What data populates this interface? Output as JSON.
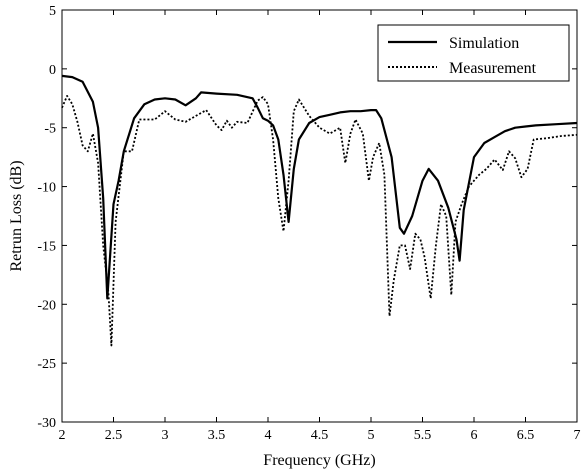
{
  "chart_data": {
    "type": "line",
    "title": "",
    "xlabel": "Frequency (GHz)",
    "ylabel": "Retrun Loss (dB)",
    "xlim": [
      2,
      7
    ],
    "ylim": [
      -30,
      5
    ],
    "xticks": [
      "2",
      "2.5",
      "3",
      "3.5",
      "4",
      "4.5",
      "5",
      "5.5",
      "6",
      "6.5",
      "7"
    ],
    "yticks": [
      "5",
      "0",
      "-5",
      "-10",
      "-15",
      "-20",
      "-25",
      "-30"
    ],
    "grid": false,
    "legend_position": "top-right",
    "series": [
      {
        "name": "Simulation",
        "style": "solid",
        "color": "#000000",
        "points": [
          [
            2.0,
            -0.6
          ],
          [
            2.1,
            -0.7
          ],
          [
            2.2,
            -1.1
          ],
          [
            2.3,
            -2.8
          ],
          [
            2.35,
            -5.0
          ],
          [
            2.4,
            -11.0
          ],
          [
            2.44,
            -19.5
          ],
          [
            2.5,
            -11.5
          ],
          [
            2.55,
            -9.5
          ],
          [
            2.6,
            -7.0
          ],
          [
            2.7,
            -4.2
          ],
          [
            2.8,
            -3.0
          ],
          [
            2.9,
            -2.6
          ],
          [
            3.0,
            -2.5
          ],
          [
            3.1,
            -2.6
          ],
          [
            3.2,
            -3.1
          ],
          [
            3.3,
            -2.5
          ],
          [
            3.35,
            -2.0
          ],
          [
            3.5,
            -2.1
          ],
          [
            3.7,
            -2.2
          ],
          [
            3.85,
            -2.5
          ],
          [
            3.9,
            -3.3
          ],
          [
            3.95,
            -4.2
          ],
          [
            4.0,
            -4.4
          ],
          [
            4.05,
            -4.8
          ],
          [
            4.1,
            -6.0
          ],
          [
            4.15,
            -9.0
          ],
          [
            4.2,
            -13.0
          ],
          [
            4.25,
            -8.5
          ],
          [
            4.3,
            -6.0
          ],
          [
            4.4,
            -4.6
          ],
          [
            4.5,
            -4.1
          ],
          [
            4.6,
            -3.9
          ],
          [
            4.7,
            -3.7
          ],
          [
            4.8,
            -3.6
          ],
          [
            4.9,
            -3.6
          ],
          [
            5.0,
            -3.5
          ],
          [
            5.05,
            -3.5
          ],
          [
            5.1,
            -4.2
          ],
          [
            5.2,
            -7.5
          ],
          [
            5.28,
            -13.5
          ],
          [
            5.32,
            -14.0
          ],
          [
            5.4,
            -12.5
          ],
          [
            5.5,
            -9.5
          ],
          [
            5.56,
            -8.5
          ],
          [
            5.65,
            -9.5
          ],
          [
            5.75,
            -11.8
          ],
          [
            5.83,
            -14.5
          ],
          [
            5.86,
            -16.3
          ],
          [
            5.9,
            -12.0
          ],
          [
            6.0,
            -7.5
          ],
          [
            6.1,
            -6.3
          ],
          [
            6.2,
            -5.8
          ],
          [
            6.3,
            -5.3
          ],
          [
            6.4,
            -5.0
          ],
          [
            6.5,
            -4.9
          ],
          [
            6.6,
            -4.8
          ],
          [
            6.8,
            -4.7
          ],
          [
            7.0,
            -4.6
          ]
        ]
      },
      {
        "name": "Measurement",
        "style": "dotted",
        "color": "#000000",
        "points": [
          [
            2.0,
            -3.3
          ],
          [
            2.05,
            -2.3
          ],
          [
            2.1,
            -3.0
          ],
          [
            2.15,
            -4.5
          ],
          [
            2.2,
            -6.5
          ],
          [
            2.25,
            -7.0
          ],
          [
            2.3,
            -5.5
          ],
          [
            2.35,
            -8.0
          ],
          [
            2.4,
            -15.0
          ],
          [
            2.45,
            -19.0
          ],
          [
            2.48,
            -23.5
          ],
          [
            2.52,
            -13.0
          ],
          [
            2.56,
            -10.0
          ],
          [
            2.6,
            -7.0
          ],
          [
            2.68,
            -7.0
          ],
          [
            2.75,
            -4.3
          ],
          [
            2.9,
            -4.3
          ],
          [
            3.0,
            -3.6
          ],
          [
            3.1,
            -4.3
          ],
          [
            3.2,
            -4.5
          ],
          [
            3.3,
            -4.0
          ],
          [
            3.4,
            -3.5
          ],
          [
            3.5,
            -4.8
          ],
          [
            3.55,
            -5.2
          ],
          [
            3.6,
            -4.4
          ],
          [
            3.65,
            -5.0
          ],
          [
            3.7,
            -4.5
          ],
          [
            3.8,
            -4.6
          ],
          [
            3.9,
            -2.7
          ],
          [
            3.95,
            -2.4
          ],
          [
            4.0,
            -3.0
          ],
          [
            4.05,
            -6.0
          ],
          [
            4.1,
            -11.0
          ],
          [
            4.15,
            -13.8
          ],
          [
            4.2,
            -9.5
          ],
          [
            4.25,
            -3.6
          ],
          [
            4.3,
            -2.6
          ],
          [
            4.4,
            -4.0
          ],
          [
            4.5,
            -5.0
          ],
          [
            4.6,
            -5.5
          ],
          [
            4.7,
            -5.0
          ],
          [
            4.75,
            -8.0
          ],
          [
            4.8,
            -5.5
          ],
          [
            4.85,
            -4.3
          ],
          [
            4.92,
            -5.5
          ],
          [
            4.98,
            -9.5
          ],
          [
            5.02,
            -7.5
          ],
          [
            5.08,
            -6.3
          ],
          [
            5.13,
            -9.0
          ],
          [
            5.18,
            -21.0
          ],
          [
            5.22,
            -18.0
          ],
          [
            5.28,
            -15.0
          ],
          [
            5.33,
            -15.0
          ],
          [
            5.38,
            -17.0
          ],
          [
            5.43,
            -14.0
          ],
          [
            5.48,
            -14.5
          ],
          [
            5.52,
            -16.0
          ],
          [
            5.58,
            -19.5
          ],
          [
            5.63,
            -15.0
          ],
          [
            5.68,
            -11.5
          ],
          [
            5.73,
            -12.5
          ],
          [
            5.78,
            -19.2
          ],
          [
            5.82,
            -13.0
          ],
          [
            5.88,
            -11.5
          ],
          [
            5.95,
            -10.0
          ],
          [
            6.05,
            -9.0
          ],
          [
            6.12,
            -8.5
          ],
          [
            6.2,
            -7.7
          ],
          [
            6.28,
            -8.6
          ],
          [
            6.34,
            -7.0
          ],
          [
            6.4,
            -7.6
          ],
          [
            6.46,
            -9.2
          ],
          [
            6.52,
            -8.5
          ],
          [
            6.58,
            -6.0
          ],
          [
            6.7,
            -5.9
          ],
          [
            6.85,
            -5.7
          ],
          [
            7.0,
            -5.6
          ]
        ]
      }
    ]
  }
}
